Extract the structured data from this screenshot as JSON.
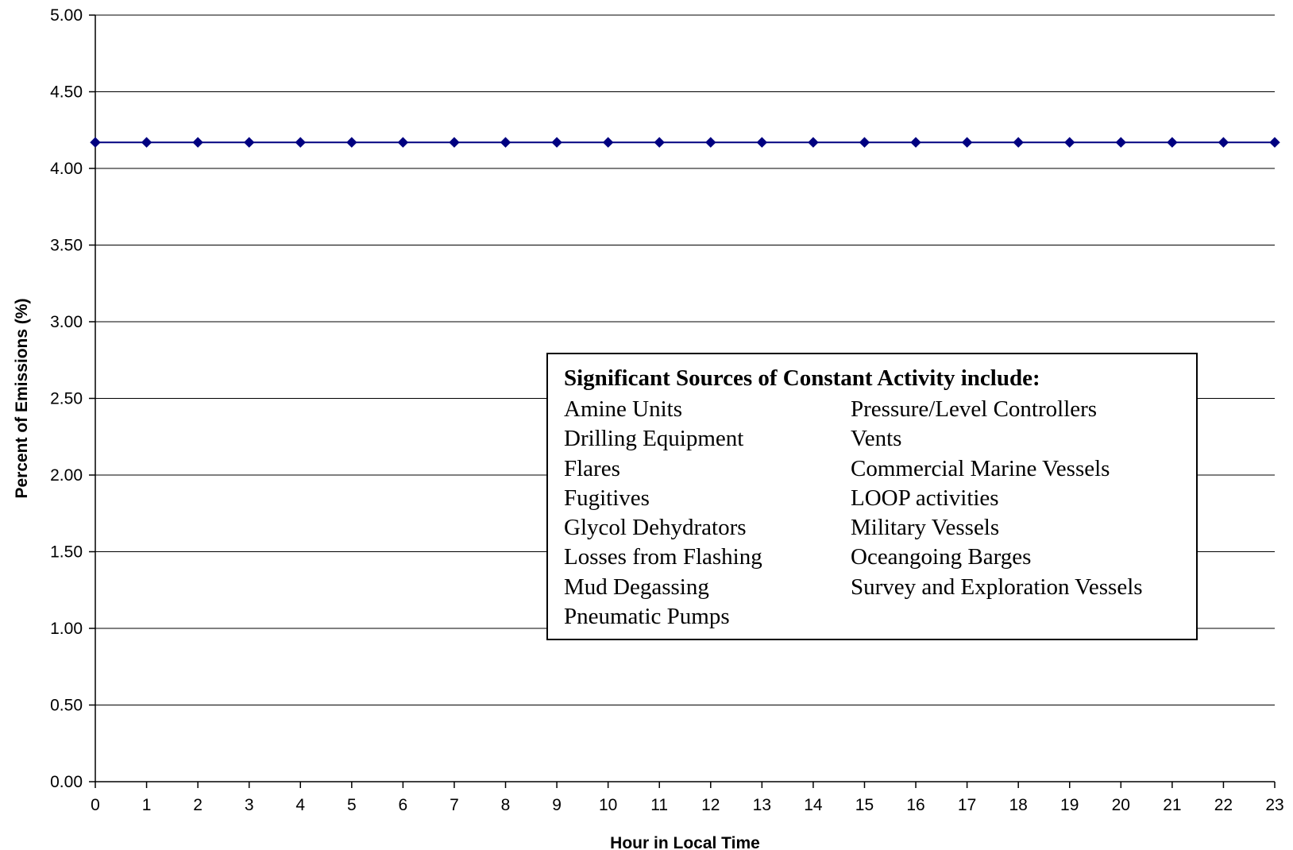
{
  "chart_data": {
    "type": "line",
    "xlabel": "Hour in Local Time",
    "ylabel": "Percent of Emissions (%)",
    "x": [
      0,
      1,
      2,
      3,
      4,
      5,
      6,
      7,
      8,
      9,
      10,
      11,
      12,
      13,
      14,
      15,
      16,
      17,
      18,
      19,
      20,
      21,
      22,
      23
    ],
    "y": [
      4.17,
      4.17,
      4.17,
      4.17,
      4.17,
      4.17,
      4.17,
      4.17,
      4.17,
      4.17,
      4.17,
      4.17,
      4.17,
      4.17,
      4.17,
      4.17,
      4.17,
      4.17,
      4.17,
      4.17,
      4.17,
      4.17,
      4.17,
      4.17
    ],
    "ylim": [
      0,
      5
    ],
    "xlim": [
      0,
      23
    ],
    "yticks": [
      "0.00",
      "0.50",
      "1.00",
      "1.50",
      "2.00",
      "2.50",
      "3.00",
      "3.50",
      "4.00",
      "4.50",
      "5.00"
    ],
    "xticks": [
      "0",
      "1",
      "2",
      "3",
      "4",
      "5",
      "6",
      "7",
      "8",
      "9",
      "10",
      "11",
      "12",
      "13",
      "14",
      "15",
      "16",
      "17",
      "18",
      "19",
      "20",
      "21",
      "22",
      "23"
    ],
    "grid": "horizontal",
    "line_color": "#000080",
    "marker": "diamond",
    "annotation": {
      "title": "Significant Sources of Constant Activity include:",
      "left_items": [
        "Amine Units",
        "Drilling Equipment",
        "Flares",
        "Fugitives",
        "Glycol Dehydrators",
        "Losses from Flashing",
        "Mud Degassing",
        "Pneumatic Pumps"
      ],
      "right_items": [
        "Pressure/Level Controllers",
        "Vents",
        "Commercial Marine Vessels",
        "LOOP activities",
        "Military Vessels",
        "Oceangoing Barges",
        "Survey and Exploration Vessels"
      ]
    }
  }
}
